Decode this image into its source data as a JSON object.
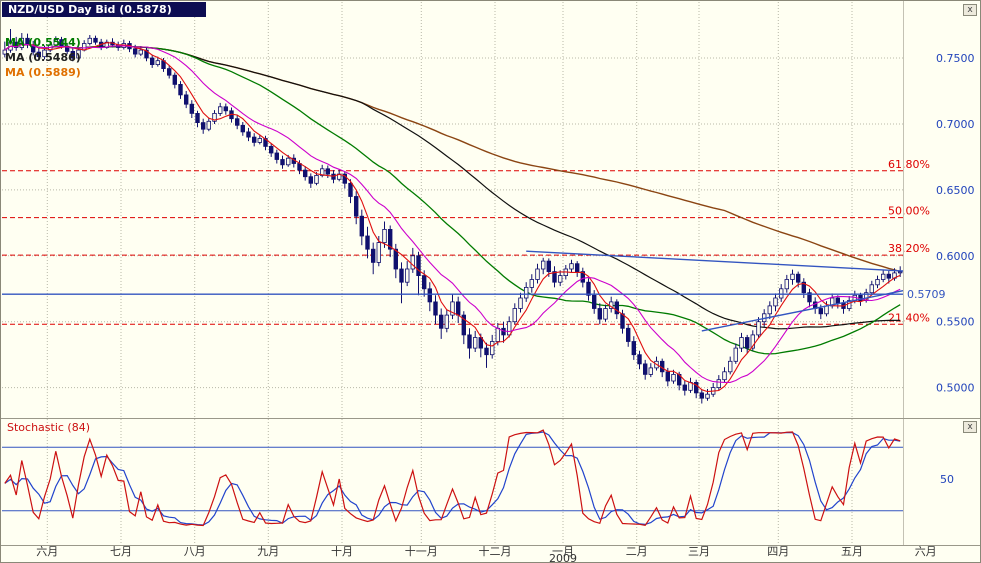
{
  "window": {
    "close_label": "x"
  },
  "colors": {
    "background": "#fffff2",
    "grid": "#b8b8a8",
    "candle": "#10106e",
    "candle_up_fill": "#fdfdee",
    "fib": "#dd0000",
    "blue": "#3355c0",
    "axis_value": "#2244bb",
    "axis_text": "#333333"
  },
  "chart_data": [
    {
      "type": "candlestick",
      "title": "NZD/USD Day Bid (0.5878)",
      "last_price": 0.5878,
      "ylim": [
        0.48,
        0.7925
      ],
      "y_ticks": [
        0.75,
        0.7,
        0.65,
        0.6,
        0.55,
        0.5
      ],
      "y_tick_labels": [
        "0.7500",
        "0.7000",
        "0.6500",
        "0.6000",
        "0.5500",
        "0.5000"
      ],
      "ma": [
        {
          "label": "MA (0.5544)",
          "line_color": "#007b00",
          "label_color": "#007b00"
        },
        {
          "label": "MA (0.5486)",
          "line_color": "#101010",
          "label_color": "#202020"
        },
        {
          "label": "MA (0.5889)",
          "line_color": "#8b4513",
          "label_color": "#e07000"
        }
      ],
      "unlabeled_ma_colors": [
        "#e01010",
        "#cc00cc"
      ],
      "fib_levels": [
        {
          "label": "61.80%",
          "value": 0.6645
        },
        {
          "label": "50.00%",
          "value": 0.629
        },
        {
          "label": "38.20%",
          "value": 0.6005
        },
        {
          "label": "21.40%",
          "value": 0.548
        }
      ],
      "price_line": {
        "label": "0.5709",
        "value": 0.5709
      },
      "trendlines": [
        {
          "from": {
            "index": 92,
            "value": 0.6035
          },
          "to": {
            "index": 159,
            "value": 0.5885
          }
        },
        {
          "from": {
            "index": 123,
            "value": 0.543
          },
          "to": {
            "index": 159,
            "value": 0.5735
          }
        }
      ],
      "month_starts": [
        {
          "label": "六月",
          "index": 8
        },
        {
          "label": "七月",
          "index": 21
        },
        {
          "label": "八月",
          "index": 34
        },
        {
          "label": "九月",
          "index": 47
        },
        {
          "label": "十月",
          "index": 60
        },
        {
          "label": "十一月",
          "index": 74
        },
        {
          "label": "十二月",
          "index": 87
        },
        {
          "label": "一月",
          "index": 99
        },
        {
          "label": "二月",
          "index": 112
        },
        {
          "label": "三月",
          "index": 123
        },
        {
          "label": "四月",
          "index": 137
        },
        {
          "label": "五月",
          "index": 150
        },
        {
          "label": "六月",
          "index": 163
        }
      ],
      "year": {
        "label": "2009",
        "index": 99
      },
      "candles": [
        [
          0.753,
          0.7625,
          0.7505,
          0.756
        ],
        [
          0.756,
          0.772,
          0.754,
          0.762
        ],
        [
          0.762,
          0.766,
          0.7555,
          0.758
        ],
        [
          0.758,
          0.769,
          0.756,
          0.765
        ],
        [
          0.765,
          0.7685,
          0.7575,
          0.76
        ],
        [
          0.76,
          0.763,
          0.752,
          0.7545
        ],
        [
          0.7545,
          0.758,
          0.748,
          0.751
        ],
        [
          0.751,
          0.7595,
          0.749,
          0.756
        ],
        [
          0.756,
          0.763,
          0.7545,
          0.76
        ],
        [
          0.76,
          0.7665,
          0.7585,
          0.764
        ],
        [
          0.764,
          0.766,
          0.757,
          0.759
        ],
        [
          0.759,
          0.7615,
          0.753,
          0.755
        ],
        [
          0.755,
          0.7575,
          0.7475,
          0.75
        ],
        [
          0.75,
          0.7585,
          0.749,
          0.756
        ],
        [
          0.756,
          0.7635,
          0.755,
          0.761
        ],
        [
          0.761,
          0.7675,
          0.7595,
          0.765
        ],
        [
          0.765,
          0.767,
          0.76,
          0.762
        ],
        [
          0.762,
          0.7645,
          0.756,
          0.758
        ],
        [
          0.758,
          0.764,
          0.757,
          0.762
        ],
        [
          0.762,
          0.765,
          0.758,
          0.76
        ],
        [
          0.76,
          0.7625,
          0.7555,
          0.758
        ],
        [
          0.758,
          0.764,
          0.7565,
          0.761
        ],
        [
          0.761,
          0.763,
          0.7545,
          0.757
        ],
        [
          0.757,
          0.76,
          0.7505,
          0.753
        ],
        [
          0.753,
          0.759,
          0.7515,
          0.756
        ],
        [
          0.756,
          0.758,
          0.7475,
          0.75
        ],
        [
          0.75,
          0.7525,
          0.7425,
          0.745
        ],
        [
          0.745,
          0.751,
          0.7435,
          0.748
        ],
        [
          0.748,
          0.75,
          0.7395,
          0.742
        ],
        [
          0.742,
          0.7445,
          0.7345,
          0.737
        ],
        [
          0.737,
          0.739,
          0.727,
          0.73
        ],
        [
          0.73,
          0.7325,
          0.719,
          0.722
        ],
        [
          0.722,
          0.725,
          0.712,
          0.715
        ],
        [
          0.715,
          0.718,
          0.7045,
          0.708
        ],
        [
          0.708,
          0.71,
          0.6975,
          0.701
        ],
        [
          0.701,
          0.704,
          0.6925,
          0.696
        ],
        [
          0.696,
          0.7045,
          0.6945,
          0.702
        ],
        [
          0.702,
          0.7105,
          0.7,
          0.708
        ],
        [
          0.708,
          0.716,
          0.706,
          0.713
        ],
        [
          0.713,
          0.7155,
          0.707,
          0.71
        ],
        [
          0.71,
          0.7125,
          0.701,
          0.704
        ],
        [
          0.704,
          0.7065,
          0.696,
          0.699
        ],
        [
          0.699,
          0.7015,
          0.691,
          0.694
        ],
        [
          0.694,
          0.697,
          0.687,
          0.69
        ],
        [
          0.69,
          0.693,
          0.683,
          0.686
        ],
        [
          0.686,
          0.692,
          0.6845,
          0.689
        ],
        [
          0.689,
          0.691,
          0.68,
          0.683
        ],
        [
          0.683,
          0.685,
          0.675,
          0.678
        ],
        [
          0.678,
          0.6805,
          0.67,
          0.673
        ],
        [
          0.673,
          0.676,
          0.666,
          0.669
        ],
        [
          0.669,
          0.6765,
          0.6675,
          0.674
        ],
        [
          0.674,
          0.677,
          0.667,
          0.67
        ],
        [
          0.67,
          0.6725,
          0.662,
          0.665
        ],
        [
          0.665,
          0.668,
          0.657,
          0.66
        ],
        [
          0.66,
          0.6625,
          0.6515,
          0.655
        ],
        [
          0.655,
          0.6635,
          0.6535,
          0.661
        ],
        [
          0.661,
          0.669,
          0.6595,
          0.666
        ],
        [
          0.666,
          0.6685,
          0.659,
          0.662
        ],
        [
          0.662,
          0.665,
          0.655,
          0.658
        ],
        [
          0.658,
          0.6655,
          0.6565,
          0.662
        ],
        [
          0.662,
          0.664,
          0.651,
          0.655
        ],
        [
          0.655,
          0.658,
          0.64,
          0.645
        ],
        [
          0.645,
          0.649,
          0.624,
          0.63
        ],
        [
          0.63,
          0.635,
          0.608,
          0.615
        ],
        [
          0.615,
          0.622,
          0.598,
          0.605
        ],
        [
          0.605,
          0.61,
          0.586,
          0.595
        ],
        [
          0.595,
          0.615,
          0.592,
          0.61
        ],
        [
          0.61,
          0.626,
          0.606,
          0.62
        ],
        [
          0.62,
          0.623,
          0.599,
          0.605
        ],
        [
          0.605,
          0.609,
          0.583,
          0.59
        ],
        [
          0.59,
          0.595,
          0.564,
          0.58
        ],
        [
          0.58,
          0.596,
          0.577,
          0.59
        ],
        [
          0.59,
          0.606,
          0.587,
          0.6
        ],
        [
          0.6,
          0.603,
          0.57,
          0.585
        ],
        [
          0.585,
          0.589,
          0.569,
          0.575
        ],
        [
          0.575,
          0.58,
          0.558,
          0.565
        ],
        [
          0.565,
          0.57,
          0.548,
          0.555
        ],
        [
          0.555,
          0.56,
          0.537,
          0.545
        ],
        [
          0.545,
          0.559,
          0.542,
          0.555
        ],
        [
          0.555,
          0.571,
          0.552,
          0.565
        ],
        [
          0.565,
          0.569,
          0.549,
          0.555
        ],
        [
          0.555,
          0.558,
          0.533,
          0.54
        ],
        [
          0.54,
          0.545,
          0.522,
          0.53
        ],
        [
          0.53,
          0.543,
          0.527,
          0.538
        ],
        [
          0.538,
          0.541,
          0.523,
          0.53
        ],
        [
          0.53,
          0.534,
          0.515,
          0.525
        ],
        [
          0.525,
          0.54,
          0.522,
          0.535
        ],
        [
          0.535,
          0.549,
          0.532,
          0.545
        ],
        [
          0.545,
          0.55,
          0.534,
          0.54
        ],
        [
          0.54,
          0.554,
          0.538,
          0.55
        ],
        [
          0.55,
          0.564,
          0.548,
          0.56
        ],
        [
          0.56,
          0.572,
          0.557,
          0.568
        ],
        [
          0.568,
          0.58,
          0.565,
          0.576
        ],
        [
          0.576,
          0.586,
          0.572,
          0.582
        ],
        [
          0.582,
          0.594,
          0.579,
          0.59
        ],
        [
          0.59,
          0.5985,
          0.586,
          0.596
        ],
        [
          0.596,
          0.598,
          0.584,
          0.588
        ],
        [
          0.588,
          0.592,
          0.576,
          0.58
        ],
        [
          0.58,
          0.589,
          0.577,
          0.585
        ],
        [
          0.585,
          0.593,
          0.582,
          0.59
        ],
        [
          0.59,
          0.597,
          0.587,
          0.594
        ],
        [
          0.594,
          0.596,
          0.584,
          0.588
        ],
        [
          0.588,
          0.591,
          0.576,
          0.58
        ],
        [
          0.58,
          0.583,
          0.566,
          0.57
        ],
        [
          0.57,
          0.574,
          0.556,
          0.56
        ],
        [
          0.56,
          0.564,
          0.548,
          0.552
        ],
        [
          0.552,
          0.563,
          0.55,
          0.56
        ],
        [
          0.56,
          0.569,
          0.557,
          0.565
        ],
        [
          0.565,
          0.567,
          0.552,
          0.556
        ],
        [
          0.556,
          0.559,
          0.541,
          0.545
        ],
        [
          0.545,
          0.548,
          0.531,
          0.535
        ],
        [
          0.535,
          0.539,
          0.521,
          0.525
        ],
        [
          0.525,
          0.528,
          0.514,
          0.518
        ],
        [
          0.518,
          0.521,
          0.506,
          0.51
        ],
        [
          0.51,
          0.5185,
          0.508,
          0.515
        ],
        [
          0.515,
          0.5235,
          0.513,
          0.52
        ],
        [
          0.52,
          0.522,
          0.508,
          0.512
        ],
        [
          0.512,
          0.515,
          0.501,
          0.505
        ],
        [
          0.505,
          0.5135,
          0.503,
          0.51
        ],
        [
          0.51,
          0.512,
          0.498,
          0.502
        ],
        [
          0.502,
          0.505,
          0.494,
          0.498
        ],
        [
          0.498,
          0.5075,
          0.496,
          0.504
        ],
        [
          0.504,
          0.506,
          0.492,
          0.496
        ],
        [
          0.496,
          0.4985,
          0.488,
          0.492
        ],
        [
          0.492,
          0.499,
          0.49,
          0.495
        ],
        [
          0.495,
          0.5035,
          0.493,
          0.5
        ],
        [
          0.5,
          0.5095,
          0.498,
          0.506
        ],
        [
          0.506,
          0.5155,
          0.504,
          0.512
        ],
        [
          0.512,
          0.5235,
          0.51,
          0.52
        ],
        [
          0.52,
          0.5335,
          0.518,
          0.53
        ],
        [
          0.53,
          0.5415,
          0.527,
          0.538
        ],
        [
          0.538,
          0.54,
          0.526,
          0.53
        ],
        [
          0.53,
          0.5435,
          0.528,
          0.54
        ],
        [
          0.54,
          0.5535,
          0.538,
          0.55
        ],
        [
          0.55,
          0.5595,
          0.546,
          0.556
        ],
        [
          0.556,
          0.5655,
          0.552,
          0.562
        ],
        [
          0.562,
          0.5715,
          0.558,
          0.568
        ],
        [
          0.568,
          0.5785,
          0.565,
          0.575
        ],
        [
          0.575,
          0.5855,
          0.572,
          0.582
        ],
        [
          0.582,
          0.5895,
          0.578,
          0.586
        ],
        [
          0.586,
          0.588,
          0.576,
          0.58
        ],
        [
          0.58,
          0.583,
          0.568,
          0.572
        ],
        [
          0.572,
          0.575,
          0.561,
          0.565
        ],
        [
          0.565,
          0.5685,
          0.556,
          0.56
        ],
        [
          0.56,
          0.563,
          0.552,
          0.556
        ],
        [
          0.556,
          0.5655,
          0.554,
          0.562
        ],
        [
          0.562,
          0.5715,
          0.56,
          0.568
        ],
        [
          0.568,
          0.57,
          0.56,
          0.564
        ],
        [
          0.564,
          0.5665,
          0.556,
          0.56
        ],
        [
          0.56,
          0.5695,
          0.558,
          0.566
        ],
        [
          0.566,
          0.5735,
          0.564,
          0.57
        ],
        [
          0.57,
          0.572,
          0.562,
          0.566
        ],
        [
          0.566,
          0.575,
          0.5645,
          0.572
        ],
        [
          0.572,
          0.581,
          0.57,
          0.578
        ],
        [
          0.578,
          0.585,
          0.5755,
          0.582
        ],
        [
          0.582,
          0.5895,
          0.58,
          0.586
        ],
        [
          0.586,
          0.5885,
          0.579,
          0.583
        ],
        [
          0.583,
          0.5905,
          0.581,
          0.587
        ],
        [
          0.587,
          0.592,
          0.584,
          0.5878
        ]
      ]
    },
    {
      "type": "line",
      "title": "Stochastic (84)",
      "k_period": 8,
      "d_period": 4,
      "ylim": [
        0,
        100
      ],
      "levels": [
        80,
        20
      ],
      "mid_label": "50",
      "colors": {
        "k": "#cc1111",
        "d": "#2244cc"
      }
    }
  ]
}
